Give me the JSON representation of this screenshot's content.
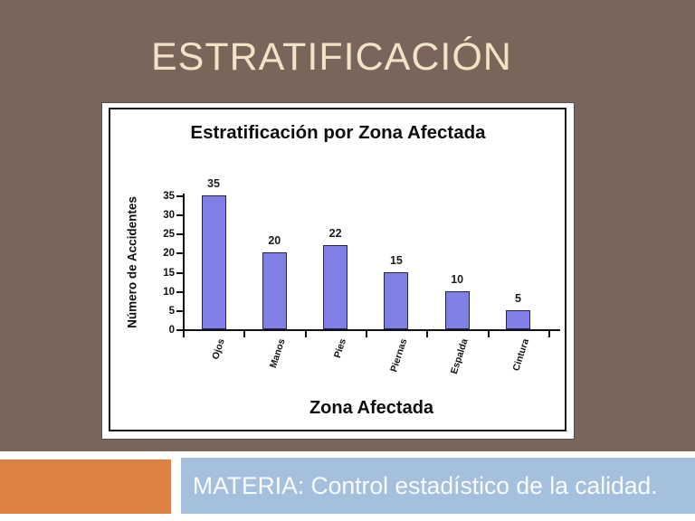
{
  "slide": {
    "title": "ESTRATIFICACIÓN"
  },
  "footer": {
    "materia_text": "MATERIA: Control estadístico de la calidad."
  },
  "colors": {
    "slide_background": "#7a655a",
    "slide_title": "#efe4c6",
    "accent_orange": "#de8243",
    "footer_band": "#a4c0dc",
    "footer_text": "#f9fcff",
    "bar_fill": "#7f7fe6",
    "bar_border": "#232355"
  },
  "chart_data": {
    "type": "bar",
    "title": "Estratificación por Zona Afectada",
    "xlabel": "Zona Afectada",
    "ylabel": "Número de Accidentes",
    "categories": [
      "Ojos",
      "Manos",
      "Pies",
      "Piernas",
      "Espalda",
      "Cintura"
    ],
    "values": [
      35,
      20,
      22,
      15,
      10,
      5
    ],
    "yticks": [
      0,
      5,
      10,
      15,
      20,
      25,
      30,
      35
    ],
    "ylim": [
      0,
      35
    ],
    "data_labels": [
      35,
      20,
      22,
      15,
      10,
      5
    ],
    "grid": false,
    "legend": false,
    "category_label_rotation_deg": -72
  }
}
